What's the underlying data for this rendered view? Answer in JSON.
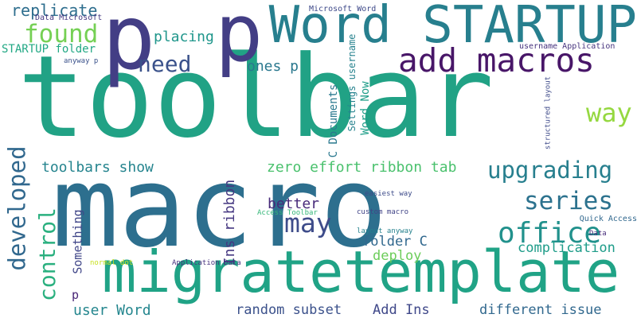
{
  "words": [
    {
      "text": "toolbar",
      "color": "#21a285",
      "vertical": false
    },
    {
      "text": "macro",
      "color": "#2d6f8e",
      "vertical": false
    },
    {
      "text": "p",
      "color": "#433e85",
      "vertical": false
    },
    {
      "text": "p",
      "color": "#433e85",
      "vertical": false
    },
    {
      "text": "migratetemplate",
      "color": "#20a386",
      "vertical": false
    },
    {
      "text": "Word STARTUP",
      "color": "#277f8e",
      "vertical": false
    },
    {
      "text": "add macros",
      "color": "#481668",
      "vertical": false
    },
    {
      "text": "found",
      "color": "#75d054",
      "vertical": false
    },
    {
      "text": "replicate",
      "color": "#2e6e8e",
      "vertical": false
    },
    {
      "text": "need",
      "color": "#3b528b",
      "vertical": false
    },
    {
      "text": "placing",
      "color": "#1f968b",
      "vertical": false
    },
    {
      "text": "ones p",
      "color": "#2a788e",
      "vertical": false
    },
    {
      "text": "way",
      "color": "#95d840",
      "vertical": false
    },
    {
      "text": "developed",
      "color": "#31688e",
      "vertical": true
    },
    {
      "text": "toolbars show",
      "color": "#25848e",
      "vertical": false
    },
    {
      "text": "zero effort ribbon tab",
      "color": "#4ac16d",
      "vertical": false
    },
    {
      "text": "upgrading",
      "color": "#277f8e",
      "vertical": false
    },
    {
      "text": "series",
      "color": "#2c728e",
      "vertical": false
    },
    {
      "text": "may",
      "color": "#3e4c8a",
      "vertical": false
    },
    {
      "text": "better",
      "color": "#472a7a",
      "vertical": false
    },
    {
      "text": "office",
      "color": "#21918c",
      "vertical": false
    },
    {
      "text": "control",
      "color": "#2ab07f",
      "vertical": true
    },
    {
      "text": "Something",
      "color": "#404688",
      "vertical": true
    },
    {
      "text": "Ins ribbon",
      "color": "#453781",
      "vertical": true
    },
    {
      "text": "folder C",
      "color": "#31688e",
      "vertical": false
    },
    {
      "text": "deploy",
      "color": "#6ccd5a",
      "vertical": false
    },
    {
      "text": "complication",
      "color": "#1e9c89",
      "vertical": false
    },
    {
      "text": "user Word",
      "color": "#24868e",
      "vertical": false
    },
    {
      "text": "p",
      "color": "#482576",
      "vertical": false
    },
    {
      "text": "random subset",
      "color": "#3b518b",
      "vertical": false
    },
    {
      "text": "Add Ins",
      "color": "#3f4889",
      "vertical": false
    },
    {
      "text": "different issue",
      "color": "#31688e",
      "vertical": false
    },
    {
      "text": "STARTUP folder",
      "color": "#22a884",
      "vertical": false
    },
    {
      "text": "C Documents",
      "color": "#2a788e",
      "vertical": true
    },
    {
      "text": "Settings username",
      "color": "#26828e",
      "vertical": true
    },
    {
      "text": "Word Now",
      "color": "#1f9e89",
      "vertical": true
    },
    {
      "text": "Microsoft Word",
      "color": "#3e4989",
      "vertical": false
    },
    {
      "text": "Data Microsoft",
      "color": "#453781",
      "vertical": false
    },
    {
      "text": "anyway p",
      "color": "#3b528b",
      "vertical": false
    },
    {
      "text": "username Application",
      "color": "#46337e",
      "vertical": false
    },
    {
      "text": "structured layout",
      "color": "#3e4a89",
      "vertical": true
    },
    {
      "text": "easiest way",
      "color": "#3e4c8a",
      "vertical": false
    },
    {
      "text": "custom macro",
      "color": "#414487",
      "vertical": false
    },
    {
      "text": "Access Toolbar",
      "color": "#35b779",
      "vertical": false
    },
    {
      "text": "layout anyway",
      "color": "#26828e",
      "vertical": false
    },
    {
      "text": "Quick Access",
      "color": "#31688e",
      "vertical": false
    },
    {
      "text": "Data",
      "color": "#472d7b",
      "vertical": false
    },
    {
      "text": "normal dot",
      "color": "#c8e020",
      "vertical": false
    },
    {
      "text": "Application Data",
      "color": "#46327e",
      "vertical": false
    }
  ]
}
